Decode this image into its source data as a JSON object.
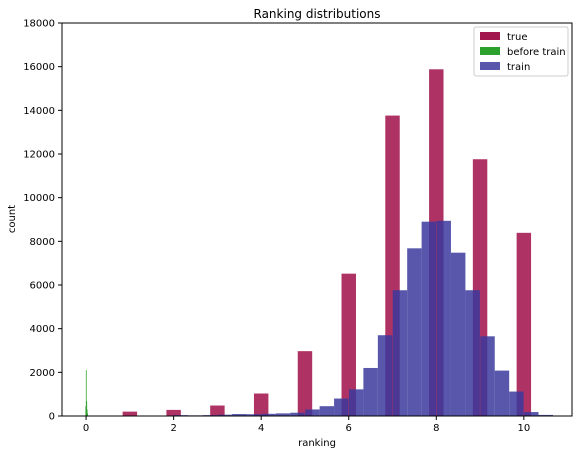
{
  "chart_data": {
    "type": "bar",
    "title": "Ranking distributions",
    "xlabel": "ranking",
    "ylabel": "count",
    "xlim": [
      -0.55,
      11.1
    ],
    "ylim": [
      0,
      18000
    ],
    "xticks": [
      0,
      2,
      4,
      6,
      8,
      10
    ],
    "yticks": [
      0,
      2000,
      4000,
      6000,
      8000,
      10000,
      12000,
      14000,
      16000,
      18000
    ],
    "grid": false,
    "legend_position": "top-right",
    "series": [
      {
        "name": "true",
        "color": "#a3174f",
        "bin_width": 0.33,
        "x": [
          1,
          2,
          3,
          4,
          5,
          6,
          7,
          8,
          9,
          10
        ],
        "values": [
          200,
          280,
          480,
          1030,
          2970,
          6520,
          13760,
          15880,
          11760,
          8390
        ]
      },
      {
        "name": "before train",
        "color": "#2ca02c",
        "bin_width": 0.01,
        "x": [
          -0.01,
          0,
          0.01,
          0.02,
          0.03
        ],
        "values": [
          450,
          2100,
          680,
          300,
          120
        ]
      },
      {
        "name": "train",
        "color": "#3b3a9c",
        "bin_width": 0.33,
        "x": [
          1.5,
          1.83,
          2.17,
          2.5,
          2.83,
          3.17,
          3.5,
          3.83,
          4.17,
          4.5,
          4.83,
          5.17,
          5.5,
          5.83,
          6.17,
          6.5,
          6.83,
          7.17,
          7.5,
          7.83,
          8.17,
          8.5,
          8.83,
          9.17,
          9.5,
          9.83,
          10.17,
          10.5
        ],
        "values": [
          10,
          20,
          40,
          30,
          40,
          60,
          90,
          80,
          100,
          120,
          150,
          300,
          450,
          800,
          1220,
          2200,
          3700,
          5760,
          7680,
          8900,
          8940,
          7480,
          5760,
          3650,
          2080,
          1120,
          180,
          50
        ]
      }
    ]
  }
}
